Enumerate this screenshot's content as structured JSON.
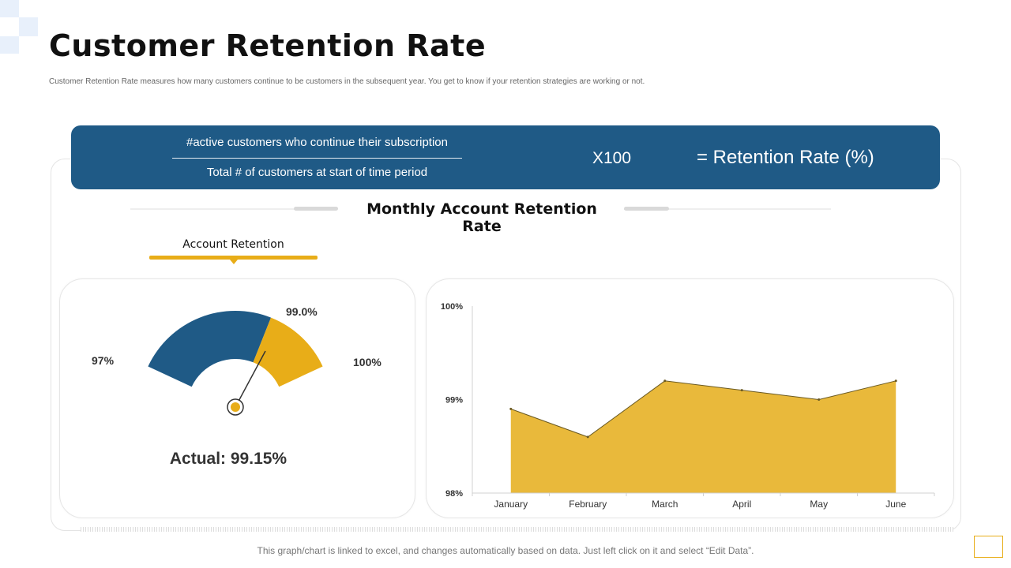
{
  "page": {
    "title": "Customer Retention Rate",
    "subtitle": "Customer Retention Rate measures how many customers continue to be customers in the subsequent year. You get to know if your retention strategies are working or not.",
    "footnote": "This graph/chart is linked to excel, and changes automatically based on data. Just left click on it and select “Edit Data”."
  },
  "formula": {
    "numerator": "#active customers who continue their subscription",
    "denominator": "Total # of customers at start of time period",
    "multiplier": "X100",
    "result": "= Retention Rate (%)"
  },
  "section": {
    "title": "Monthly Account Retention Rate",
    "account_label": "Account Retention"
  },
  "colors": {
    "navy": "#1f5a86",
    "gold": "#e8ad18",
    "area_fill": "#e9b93b"
  },
  "chart_data": [
    {
      "type": "gauge",
      "title": "Account Retention",
      "min": 97,
      "max": 100,
      "target": 99.0,
      "actual": 99.15,
      "min_label": "97%",
      "max_label": "100%",
      "target_label": "99.0%",
      "actual_label": "Actual: 99.15%"
    },
    {
      "type": "area",
      "title": "Monthly Account Retention Rate",
      "categories": [
        "January",
        "February",
        "March",
        "April",
        "May",
        "June"
      ],
      "values": [
        98.9,
        98.6,
        99.2,
        99.1,
        99.0,
        99.2
      ],
      "ylim": [
        98,
        100
      ],
      "yticks": [
        98,
        99,
        100
      ],
      "ytick_labels": [
        "98%",
        "99%",
        "100%"
      ],
      "grid": false
    }
  ]
}
